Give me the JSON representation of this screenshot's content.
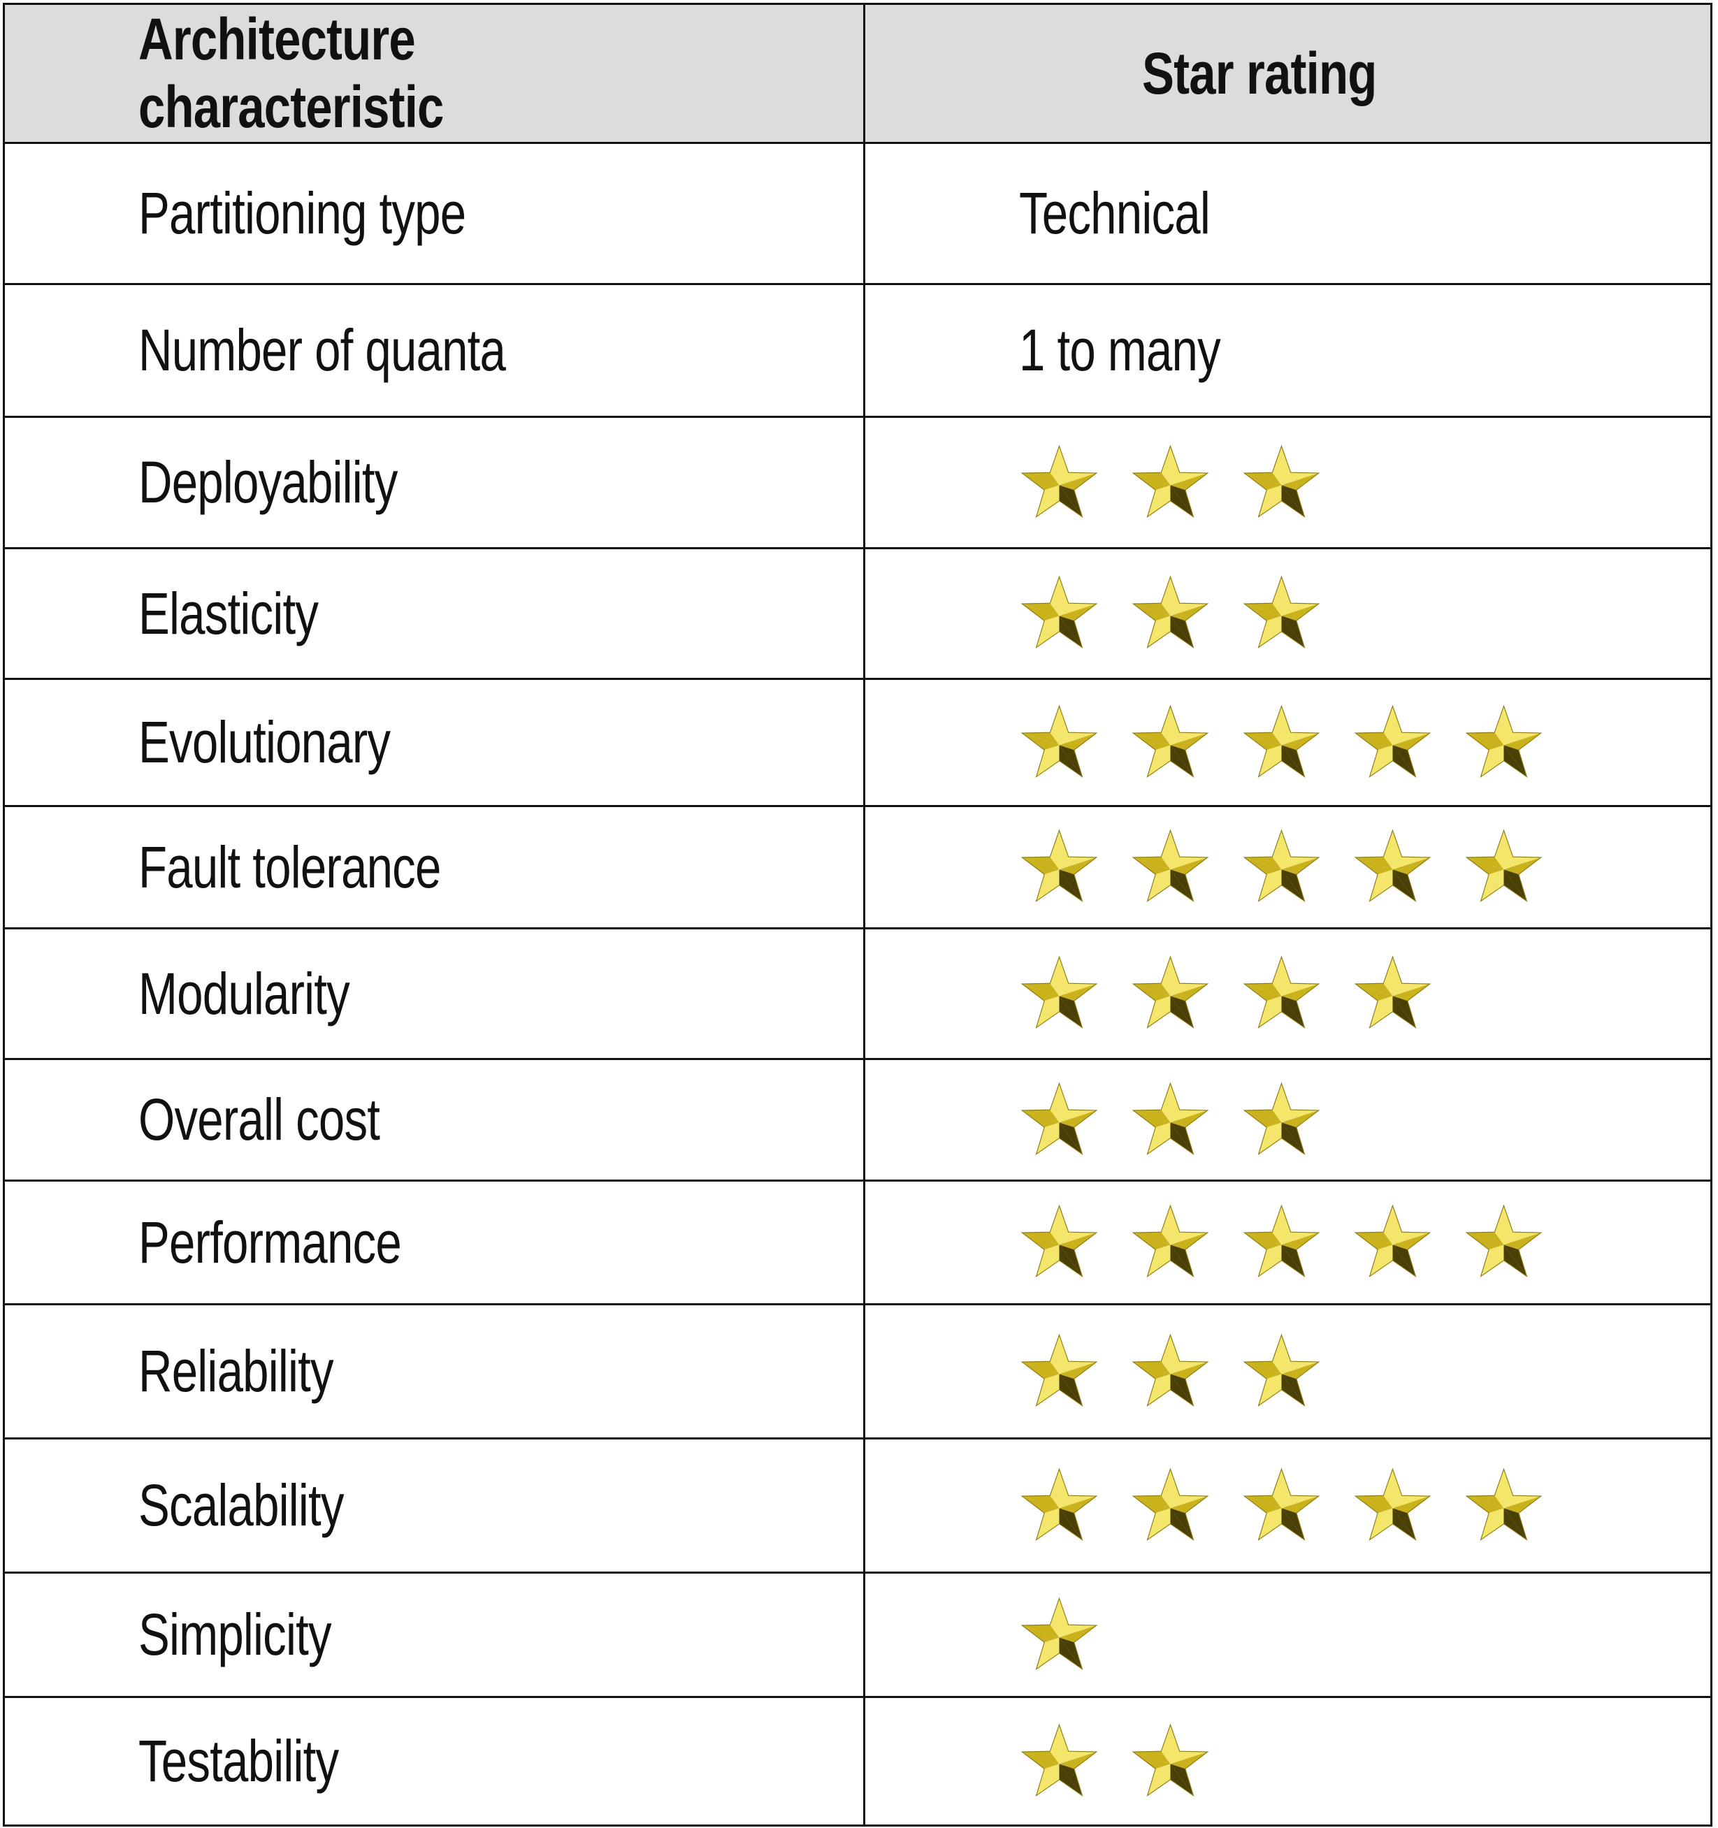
{
  "table": {
    "headers": [
      "Architecture characteristic",
      "Star rating"
    ],
    "rows": [
      {
        "name": "Partitioning type",
        "text": "Technical"
      },
      {
        "name": "Number of quanta",
        "text": "1 to many"
      },
      {
        "name": "Deployability",
        "stars": 3
      },
      {
        "name": "Elasticity",
        "stars": 3
      },
      {
        "name": "Evolutionary",
        "stars": 5
      },
      {
        "name": "Fault tolerance",
        "stars": 5
      },
      {
        "name": "Modularity",
        "stars": 4
      },
      {
        "name": "Overall cost",
        "stars": 3
      },
      {
        "name": "Performance",
        "stars": 5
      },
      {
        "name": "Reliability",
        "stars": 3
      },
      {
        "name": "Scalability",
        "stars": 5
      },
      {
        "name": "Simplicity",
        "stars": 1
      },
      {
        "name": "Testability",
        "stars": 2
      }
    ]
  },
  "colors": {
    "header_bg": "#dcdcdc",
    "star_light": "#f3e66a",
    "star_mid": "#c9b21c",
    "star_dark": "#4a3f05"
  }
}
